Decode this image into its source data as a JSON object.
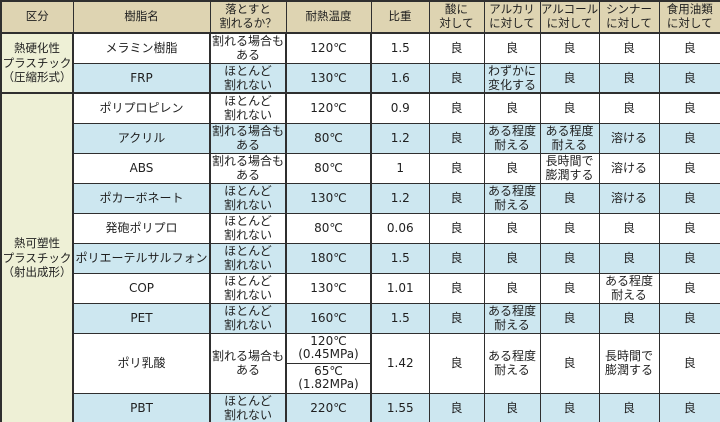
{
  "table": {
    "headers": [
      "区分",
      "樹脂名",
      "落とすと\n割れるか？",
      "耐熱温度",
      "比重",
      "酸に\n対して",
      "アルカリ\nに対して",
      "アルコール\nに対して",
      "シンナー\nに対して",
      "食用油類\nに対して"
    ],
    "categories": [
      {
        "label": "熱硬化性\nプラスチック\n（圧縮形式）",
        "start": 0,
        "rowspan": 2
      },
      {
        "label": "熱可塑性\nプラスチック\n（射出成形）",
        "start": 2,
        "rowspan": 10
      }
    ],
    "rows": [
      {
        "name": "メラミン樹脂",
        "breaks": "割れる場合も\nある",
        "temp": "120℃",
        "gravity": "1.5",
        "acid": "良",
        "alkali": "良",
        "alcohol": "良",
        "thinner": "良",
        "oil": "良",
        "shade": "white"
      },
      {
        "name": "FRP",
        "breaks": "ほとんど\n割れない",
        "temp": "130℃",
        "gravity": "1.6",
        "acid": "良",
        "alkali": "わずかに\n変化する",
        "alcohol": "良",
        "thinner": "良",
        "oil": "良",
        "shade": "blue",
        "group_end": true
      },
      {
        "name": "ポリプロピレン",
        "breaks": "ほとんど\n割れない",
        "temp": "120℃",
        "gravity": "0.9",
        "acid": "良",
        "alkali": "良",
        "alcohol": "良",
        "thinner": "良",
        "oil": "良",
        "shade": "white"
      },
      {
        "name": "アクリル",
        "breaks": "割れる場合も\nある",
        "temp": "80℃",
        "gravity": "1.2",
        "acid": "良",
        "alkali": "ある程度\n耐える",
        "alcohol": "ある程度\n耐える",
        "thinner": "溶ける",
        "oil": "良",
        "shade": "blue"
      },
      {
        "name": "ABS",
        "breaks": "割れる場合も\nある",
        "temp": "80℃",
        "gravity": "1",
        "acid": "良",
        "alkali": "良",
        "alcohol": "長時間で\n膨潤する",
        "thinner": "溶ける",
        "oil": "良",
        "shade": "white"
      },
      {
        "name": "ポカーボネート",
        "breaks": "ほとんど\n割れない",
        "temp": "130℃",
        "gravity": "1.2",
        "acid": "良",
        "alkali": "ある程度\n耐える",
        "alcohol": "良",
        "thinner": "溶ける",
        "oil": "良",
        "shade": "blue"
      },
      {
        "name": "発砲ポリプロ",
        "breaks": "ほとんど\n割れない",
        "temp": "80℃",
        "gravity": "0.06",
        "acid": "良",
        "alkali": "良",
        "alcohol": "良",
        "thinner": "良",
        "oil": "良",
        "shade": "white"
      },
      {
        "name": "ポリエーテルサルフォン",
        "breaks": "ほとんど\n割れない",
        "temp": "180℃",
        "gravity": "1.5",
        "acid": "良",
        "alkali": "良",
        "alcohol": "良",
        "thinner": "良",
        "oil": "良",
        "shade": "blue"
      },
      {
        "name": "COP",
        "breaks": "ほとんど\n割れない",
        "temp": "130℃",
        "gravity": "1.01",
        "acid": "良",
        "alkali": "良",
        "alcohol": "良",
        "thinner": "ある程度\n耐える",
        "oil": "良",
        "shade": "white"
      },
      {
        "name": "PET",
        "breaks": "ほとんど\n割れない",
        "temp": "160℃",
        "gravity": "1.5",
        "acid": "良",
        "alkali": "ある程度\n耐える",
        "alcohol": "良",
        "thinner": "良",
        "oil": "良",
        "shade": "blue"
      },
      {
        "name": "ポリ乳酸",
        "breaks": "割れる場合も\nある",
        "temp": [
          "120℃\n(0.45MPa)",
          "65℃\n(1.82MPa)"
        ],
        "gravity": "1.42",
        "acid": "良",
        "alkali": "ある程度\n耐える",
        "alcohol": "良",
        "thinner": "長時間で\n膨潤する",
        "oil": "良",
        "shade": "white",
        "tall": true
      },
      {
        "name": "PBT",
        "breaks": "ほとんど\n割れない",
        "temp": "220℃",
        "gravity": "1.55",
        "acid": "良",
        "alkali": "良",
        "alcohol": "良",
        "thinner": "良",
        "oil": "良",
        "shade": "blue"
      }
    ],
    "colors": {
      "header_bg": "#ded4b2",
      "category_bg": "#eef0d6",
      "row_blue": "#cde7f0",
      "row_white": "#ffffff",
      "border": "#2f2f2f",
      "text": "#1f1f1f"
    }
  }
}
